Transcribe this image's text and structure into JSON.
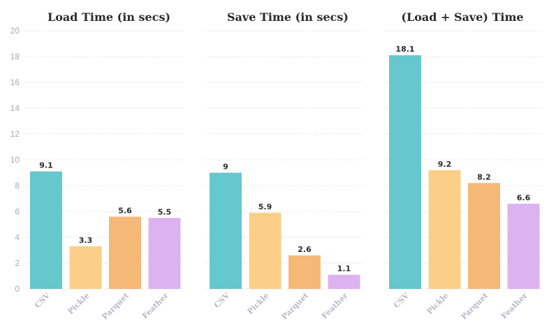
{
  "chart_data": [
    {
      "type": "bar",
      "title": "Load Time (in secs)",
      "categories": [
        "CSV",
        "Pickle",
        "Parquet",
        "Feather"
      ],
      "values": [
        9.1,
        3.3,
        5.6,
        5.5
      ],
      "data_labels": [
        "9.1",
        "3.3",
        "5.6",
        "5.5"
      ],
      "colors": [
        "#66c7cc",
        "#fbcf88",
        "#f6b877",
        "#ddb2f0"
      ],
      "ylim": [
        0,
        20
      ],
      "yticks": [
        0,
        2,
        4,
        6,
        8,
        10,
        12,
        14,
        16,
        18,
        20
      ],
      "grid": true,
      "legend": "none"
    },
    {
      "type": "bar",
      "title": "Save Time (in secs)",
      "categories": [
        "CSV",
        "Pickle",
        "Parquet",
        "Feather"
      ],
      "values": [
        9,
        5.9,
        2.6,
        1.1
      ],
      "data_labels": [
        "9",
        "5.9",
        "2.6",
        "1.1"
      ],
      "colors": [
        "#66c7cc",
        "#fbcf88",
        "#f6b877",
        "#ddb2f0"
      ],
      "ylim": [
        0,
        20
      ],
      "grid": true,
      "legend": "none"
    },
    {
      "type": "bar",
      "title": "(Load + Save) Time",
      "categories": [
        "CSV",
        "Pickle",
        "Parquet",
        "Feather"
      ],
      "values": [
        18.1,
        9.2,
        8.2,
        6.6
      ],
      "data_labels": [
        "18.1",
        "9.2",
        "8.2",
        "6.6"
      ],
      "colors": [
        "#66c7cc",
        "#fbcf88",
        "#f6b877",
        "#ddb2f0"
      ],
      "ylim": [
        0,
        20
      ],
      "grid": true,
      "legend": "none"
    }
  ]
}
